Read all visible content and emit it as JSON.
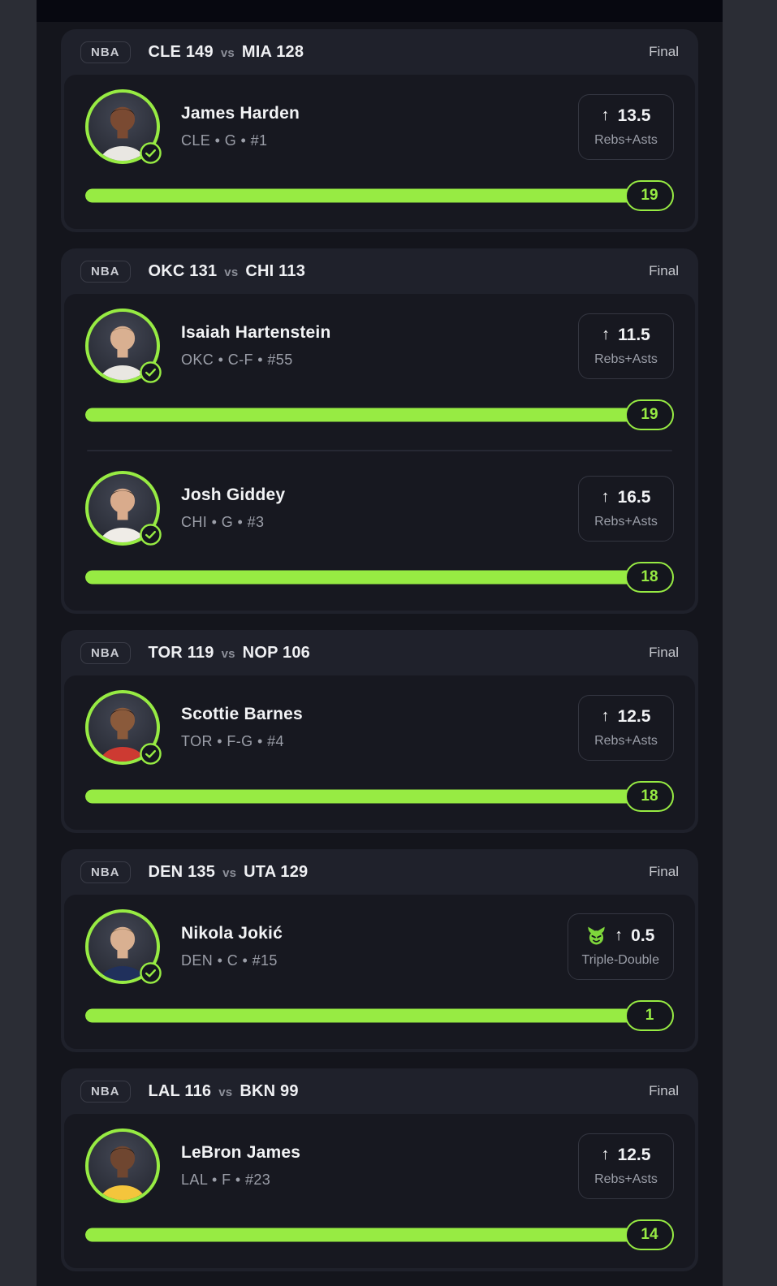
{
  "theme": {
    "green": "#97EB43",
    "frame_bg": "#2B2D35",
    "page_bg": "#14151C",
    "card_bg": "#1F212B",
    "panel_bg": "#171820"
  },
  "cards": [
    {
      "league": "NBA",
      "home": "CLE 149",
      "vs": "vs",
      "away": "MIA 128",
      "status": "Final",
      "players": [
        {
          "name": "James Harden",
          "meta": "CLE • G • #1",
          "arrow": "↑",
          "line": "13.5",
          "stat": "Rebs+Asts",
          "value": "19",
          "progress_pct": 100,
          "verified": true,
          "demon": false,
          "avatar": {
            "skin": "#7A4A32",
            "hair": "#171210",
            "jersey": "#E9E7E2"
          }
        }
      ]
    },
    {
      "league": "NBA",
      "home": "OKC 131",
      "vs": "vs",
      "away": "CHI 113",
      "status": "Final",
      "players": [
        {
          "name": "Isaiah Hartenstein",
          "meta": "OKC • C-F • #55",
          "arrow": "↑",
          "line": "11.5",
          "stat": "Rebs+Asts",
          "value": "19",
          "progress_pct": 100,
          "verified": true,
          "demon": false,
          "avatar": {
            "skin": "#D9B091",
            "hair": "#8A6B4F",
            "jersey": "#E9E7E2"
          }
        },
        {
          "name": "Josh Giddey",
          "meta": "CHI • G • #3",
          "arrow": "↑",
          "line": "16.5",
          "stat": "Rebs+Asts",
          "value": "18",
          "progress_pct": 100,
          "verified": true,
          "demon": false,
          "avatar": {
            "skin": "#D9AB8C",
            "hair": "#2B221C",
            "jersey": "#EFECE7"
          }
        }
      ]
    },
    {
      "league": "NBA",
      "home": "TOR 119",
      "vs": "vs",
      "away": "NOP 106",
      "status": "Final",
      "players": [
        {
          "name": "Scottie Barnes",
          "meta": "TOR • F-G • #4",
          "arrow": "↑",
          "line": "12.5",
          "stat": "Rebs+Asts",
          "value": "18",
          "progress_pct": 100,
          "verified": true,
          "demon": false,
          "avatar": {
            "skin": "#8A5A3B",
            "hair": "#161016",
            "jersey": "#CD3A32"
          }
        }
      ]
    },
    {
      "league": "NBA",
      "home": "DEN 135",
      "vs": "vs",
      "away": "UTA 129",
      "status": "Final",
      "players": [
        {
          "name": "Nikola Jokić",
          "meta": "DEN • C • #15",
          "arrow": "↑",
          "line": "0.5",
          "stat": "Triple-Double",
          "value": "1",
          "progress_pct": 100,
          "verified": true,
          "demon": true,
          "avatar": {
            "skin": "#D9B091",
            "hair": "#71593B",
            "jersey": "#20305C"
          }
        }
      ]
    },
    {
      "league": "NBA",
      "home": "LAL 116",
      "vs": "vs",
      "away": "BKN 99",
      "status": "Final",
      "players": [
        {
          "name": "LeBron James",
          "meta": "LAL • F • #23",
          "arrow": "↑",
          "line": "12.5",
          "stat": "Rebs+Asts",
          "value": "14",
          "progress_pct": 100,
          "verified": false,
          "demon": false,
          "avatar": {
            "skin": "#6F4630",
            "hair": "#14100D",
            "jersey": "#F4C53C"
          }
        }
      ]
    }
  ]
}
